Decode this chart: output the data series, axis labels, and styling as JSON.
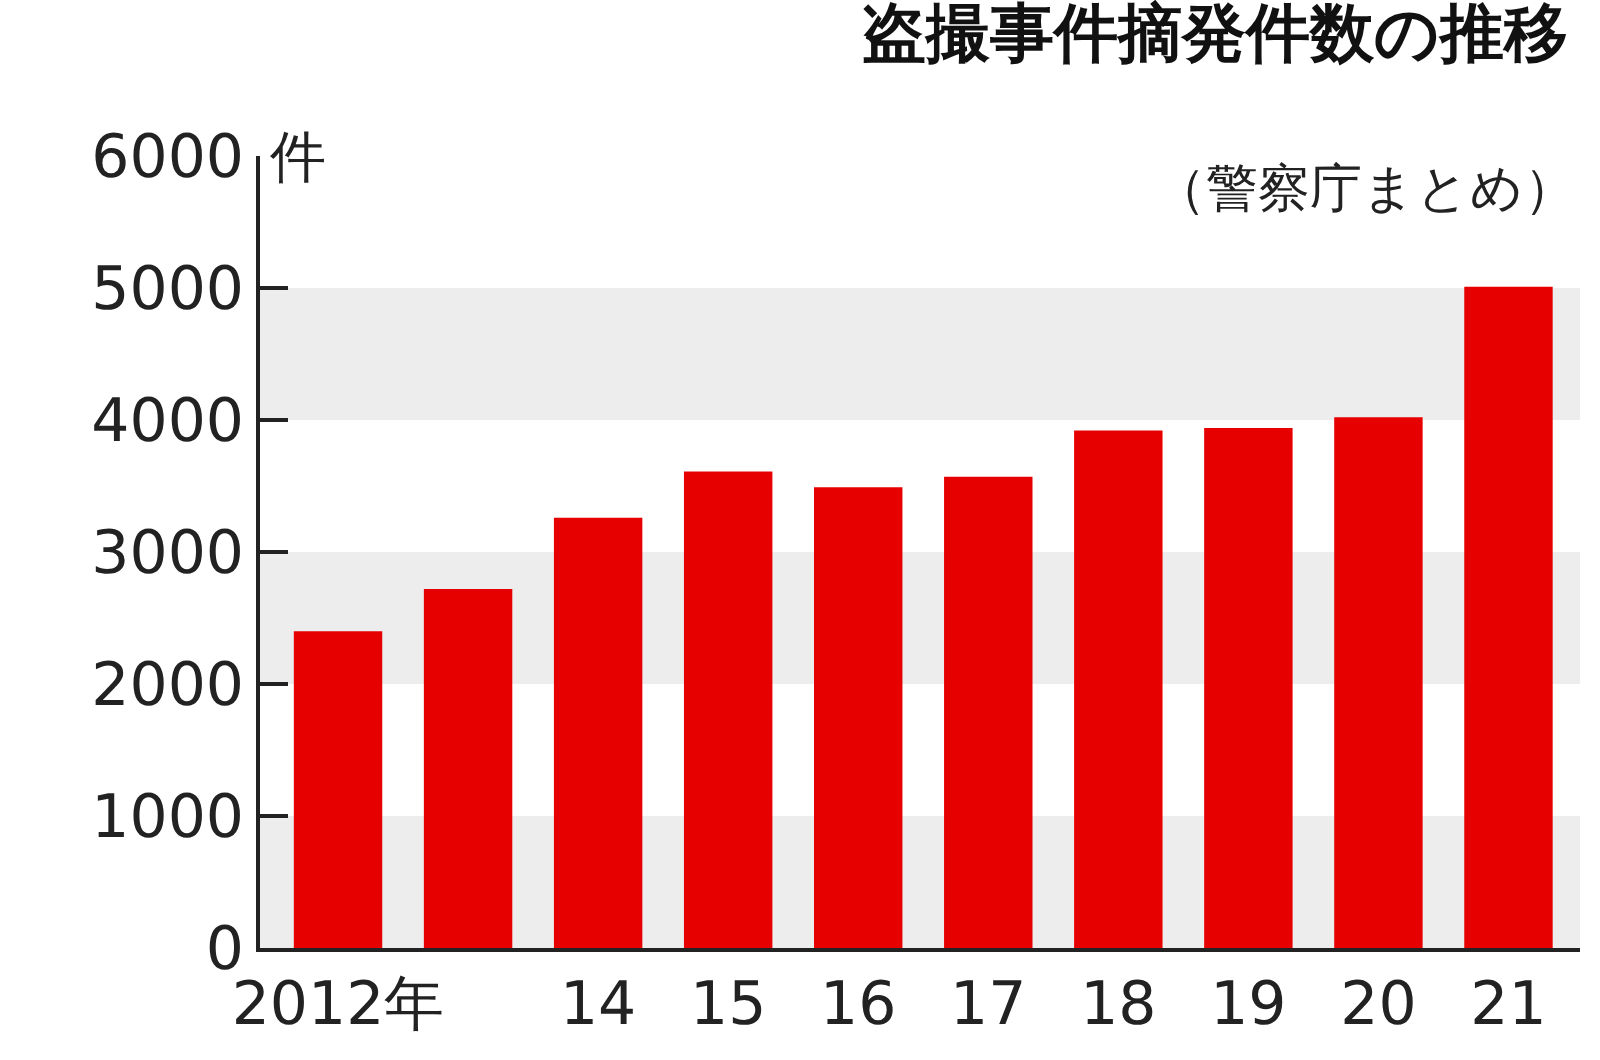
{
  "chart_data": {
    "type": "bar",
    "title": "盗撮事件摘発件数の推移",
    "subtitle": "（警察庁まとめ）",
    "ylabel": "件",
    "categories": [
      "2012年",
      null,
      "14",
      "15",
      "16",
      "17",
      "18",
      "19",
      "20",
      "21"
    ],
    "values": [
      2400,
      2720,
      3260,
      3610,
      3490,
      3570,
      3920,
      3940,
      4020,
      5010
    ],
    "color": "#e60000",
    "ylim": [
      0,
      6000
    ],
    "yticks": [
      0,
      1000,
      2000,
      3000,
      4000,
      5000,
      6000
    ],
    "grid": false,
    "bands": [
      {
        "axis": "y",
        "from": 0,
        "to": 1000,
        "color": "#ededed"
      },
      {
        "axis": "y",
        "from": 2000,
        "to": 3000,
        "color": "#ededed"
      },
      {
        "axis": "y",
        "from": 4000,
        "to": 5000,
        "color": "#ededed"
      }
    ]
  }
}
